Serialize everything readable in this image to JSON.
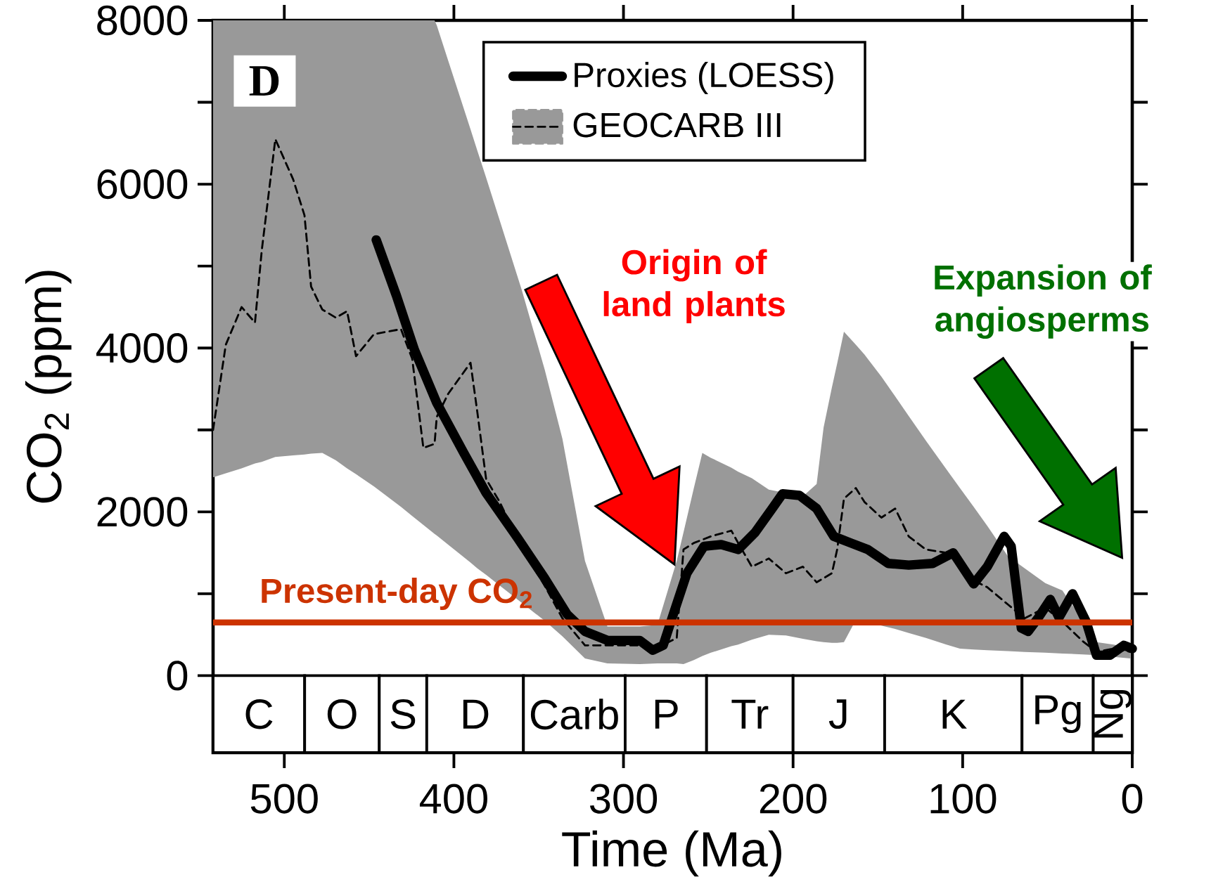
{
  "chart_data": {
    "type": "line",
    "xlabel": "Time (Ma)",
    "ylabel": "CO$_{2}$ (ppm)",
    "xlim": [
      542,
      0
    ],
    "ylim": [
      -940,
      8000
    ],
    "xticks": [
      500,
      400,
      300,
      200,
      100,
      0
    ],
    "yticks": [
      0,
      2000,
      4000,
      6000,
      8000
    ],
    "legend": "top",
    "series": [
      {
        "name": "Proxies (LOESS)",
        "color": "#000000",
        "line_style": "solid",
        "x": [
          445.8,
          433.9,
          423.3,
          410.1,
          394.2,
          381,
          362.4,
          346.5,
          333.3,
          322.7,
          309.5,
          290.4,
          282.7,
          276.6,
          270.6,
          262.6,
          252.5,
          242.4,
          232.4,
          222.3,
          212.3,
          206.2,
          196.2,
          186.1,
          176,
          166,
          155.9,
          143.9,
          131.8,
          117.7,
          105.6,
          93.5,
          85.5,
          75.5,
          71.4,
          65.4,
          61.4,
          55.3,
          48.3,
          43.2,
          35.2,
          27.2,
          21.1,
          13.1,
          5,
          0
        ],
        "values": [
          5320,
          4640,
          3980,
          3330,
          2720,
          2230,
          1680,
          1190,
          750,
          540,
          430,
          430,
          310,
          370,
          750,
          1250,
          1580,
          1600,
          1540,
          1750,
          2040,
          2220,
          2200,
          2040,
          1700,
          1620,
          1540,
          1370,
          1350,
          1370,
          1500,
          1120,
          1330,
          1700,
          1580,
          580,
          540,
          710,
          930,
          710,
          1000,
          660,
          250,
          250,
          370,
          330
        ]
      },
      {
        "name": "GEOCARB III",
        "color": "#000000",
        "line_style": "dashed",
        "x": [
          542,
          534.5,
          525.2,
          517.3,
          513.3,
          505.3,
          494.8,
          488.1,
          484.2,
          477.6,
          469.6,
          463,
          457.7,
          447.1,
          431.2,
          424.6,
          418,
          411.4,
          410.1,
          403.4,
          390.2,
          386.2,
          381,
          373,
          360,
          346.5,
          336,
          322.7,
          309.5,
          290.4,
          280,
          268.6,
          264.6,
          258.5,
          253.5,
          248.5,
          236.4,
          232.4,
          224.3,
          214.3,
          204.2,
          194.2,
          186.1,
          182,
          177.1,
          174,
          170,
          163,
          157.9,
          147.9,
          139.8,
          131.8,
          121.7,
          109.6,
          101.6,
          93.5,
          85.5,
          73.4,
          63.4,
          51.3,
          41.2,
          29.2,
          21.1,
          11,
          1
        ],
        "values": [
          3000,
          4040,
          4500,
          4310,
          5190,
          6550,
          6060,
          5620,
          4750,
          4470,
          4370,
          4450,
          3900,
          4170,
          4230,
          3870,
          2780,
          2830,
          3160,
          3440,
          3820,
          3220,
          2400,
          2120,
          1560,
          1100,
          700,
          370,
          370,
          370,
          340,
          460,
          1540,
          1620,
          1660,
          1700,
          1770,
          1620,
          1330,
          1430,
          1250,
          1330,
          1140,
          1190,
          1250,
          1540,
          2160,
          2290,
          2120,
          1930,
          2040,
          1700,
          1540,
          1500,
          1450,
          1160,
          1080,
          870,
          700,
          830,
          660,
          420,
          290,
          330,
          290
        ],
        "upper": [
          8000,
          8000,
          8000,
          8000,
          8000,
          8000,
          8000,
          8000,
          8000,
          8000,
          8000,
          8000,
          8000,
          8000,
          8000,
          8000,
          8000,
          8000,
          7940,
          7510,
          6670,
          6410,
          6080,
          5560,
          4710,
          3740,
          2890,
          1400,
          600,
          600,
          620,
          1400,
          1750,
          2290,
          2720,
          2660,
          2540,
          2490,
          2410,
          2270,
          2230,
          2190,
          2340,
          3030,
          3520,
          3810,
          4200,
          4040,
          3920,
          3650,
          3410,
          3170,
          2870,
          2520,
          2290,
          2060,
          1830,
          1460,
          1310,
          1130,
          1040,
          670,
          410,
          380,
          340
        ],
        "lower": [
          2420,
          2470,
          2530,
          2590,
          2610,
          2670,
          2690,
          2700,
          2710,
          2720,
          2630,
          2530,
          2460,
          2310,
          2060,
          1950,
          1840,
          1730,
          1710,
          1600,
          1380,
          1310,
          1230,
          1100,
          890,
          670,
          480,
          210,
          150,
          140,
          150,
          150,
          140,
          190,
          240,
          280,
          360,
          380,
          440,
          500,
          490,
          450,
          420,
          410,
          400,
          400,
          410,
          680,
          660,
          610,
          570,
          520,
          460,
          380,
          330,
          320,
          310,
          300,
          290,
          280,
          270,
          260,
          250,
          230,
          210
        ]
      }
    ],
    "ref_lines": [
      {
        "axis": "y",
        "value": 650,
        "label": "Present-day CO$_{2}$",
        "color": "#cc3300"
      }
    ],
    "bands": [
      {
        "axis": "x",
        "from": 542,
        "to": 488,
        "label": "C"
      },
      {
        "axis": "x",
        "from": 488,
        "to": 444,
        "label": "O"
      },
      {
        "axis": "x",
        "from": 444,
        "to": 416,
        "label": "S"
      },
      {
        "axis": "x",
        "from": 416,
        "to": 359,
        "label": "D"
      },
      {
        "axis": "x",
        "from": 359,
        "to": 299,
        "label": "Carb"
      },
      {
        "axis": "x",
        "from": 299,
        "to": 251,
        "label": "P"
      },
      {
        "axis": "x",
        "from": 251,
        "to": 200,
        "label": "Tr"
      },
      {
        "axis": "x",
        "from": 200,
        "to": 146,
        "label": "J"
      },
      {
        "axis": "x",
        "from": 146,
        "to": 65,
        "label": "K"
      },
      {
        "axis": "x",
        "from": 65,
        "to": 23,
        "label": "Pg"
      },
      {
        "axis": "x",
        "from": 23,
        "to": 0,
        "label": "Ng"
      }
    ],
    "annotations": [
      "D",
      "Origin of land plants",
      "Expansion of angiosperms"
    ]
  }
}
